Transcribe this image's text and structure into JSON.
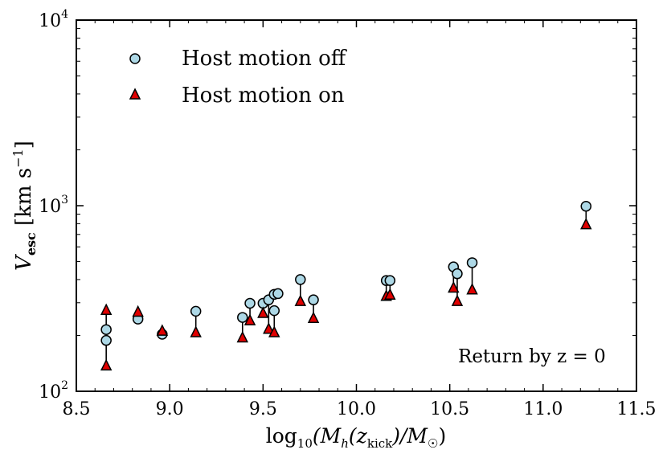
{
  "chart_data": {
    "type": "scatter",
    "yscale": "log",
    "xlim": [
      8.5,
      11.5
    ],
    "ylim": [
      100,
      10000
    ],
    "x_ticks": [
      8.5,
      9.0,
      9.5,
      10.0,
      10.5,
      11.0,
      11.5
    ],
    "x_tick_labels": [
      "8.5",
      "9.0",
      "9.5",
      "10.0",
      "10.5",
      "11.0",
      "11.5"
    ],
    "y_ticks": [
      {
        "value": 100,
        "base": "10",
        "exp": "2"
      },
      {
        "value": 1000,
        "base": "10",
        "exp": "3"
      },
      {
        "value": 10000,
        "base": "10",
        "exp": "4"
      }
    ],
    "xlabel": {
      "prefix": "log",
      "sub": "10",
      "main": "(M",
      "main_sub": "h",
      "mid": "(z",
      "mid_sub": "kick",
      "end": ")/M",
      "end_sub": "☉",
      "close": ")"
    },
    "ylabel": {
      "main": "V",
      "sub": "esc",
      "units": " [km s",
      "units_exp": "−1",
      "close": "]"
    },
    "annotation": "Return by z = 0",
    "legend_position": "top-left",
    "series": [
      {
        "name": "Host motion off",
        "marker": "circle",
        "color": "#add8e6",
        "points": [
          [
            8.66,
            188
          ],
          [
            8.66,
            215
          ],
          [
            8.83,
            245
          ],
          [
            8.96,
            203
          ],
          [
            9.14,
            270
          ],
          [
            9.39,
            250
          ],
          [
            9.43,
            298
          ],
          [
            9.5,
            298
          ],
          [
            9.53,
            311
          ],
          [
            9.56,
            333
          ],
          [
            9.58,
            336
          ],
          [
            9.56,
            272
          ],
          [
            9.7,
            400
          ],
          [
            9.77,
            311
          ],
          [
            10.16,
            395
          ],
          [
            10.18,
            395
          ],
          [
            10.52,
            468
          ],
          [
            10.54,
            430
          ],
          [
            10.62,
            493
          ],
          [
            11.23,
            993
          ]
        ]
      },
      {
        "name": "Host motion on",
        "marker": "triangle",
        "color": "#e00000",
        "points": [
          [
            8.66,
            137
          ],
          [
            8.66,
            273
          ],
          [
            8.83,
            267
          ],
          [
            8.96,
            211
          ],
          [
            9.14,
            207
          ],
          [
            9.39,
            194
          ],
          [
            9.43,
            240
          ],
          [
            9.5,
            263
          ],
          [
            9.53,
            216
          ],
          [
            9.56,
            207
          ],
          [
            9.7,
            305
          ],
          [
            9.77,
            247
          ],
          [
            10.16,
            325
          ],
          [
            10.18,
            330
          ],
          [
            10.52,
            360
          ],
          [
            10.54,
            305
          ],
          [
            10.62,
            352
          ],
          [
            11.23,
            790
          ]
        ]
      }
    ],
    "connectors": [
      [
        8.66,
        137,
        188
      ],
      [
        8.66,
        215,
        273
      ],
      [
        9.14,
        207,
        270
      ],
      [
        9.39,
        194,
        250
      ],
      [
        9.43,
        240,
        298
      ],
      [
        9.5,
        263,
        298
      ],
      [
        9.53,
        216,
        311
      ],
      [
        9.56,
        207,
        272
      ],
      [
        9.7,
        305,
        400
      ],
      [
        9.77,
        247,
        311
      ],
      [
        10.16,
        325,
        395
      ],
      [
        10.18,
        330,
        395
      ],
      [
        10.52,
        360,
        468
      ],
      [
        10.54,
        305,
        430
      ],
      [
        10.62,
        352,
        493
      ],
      [
        11.23,
        790,
        993
      ]
    ]
  }
}
